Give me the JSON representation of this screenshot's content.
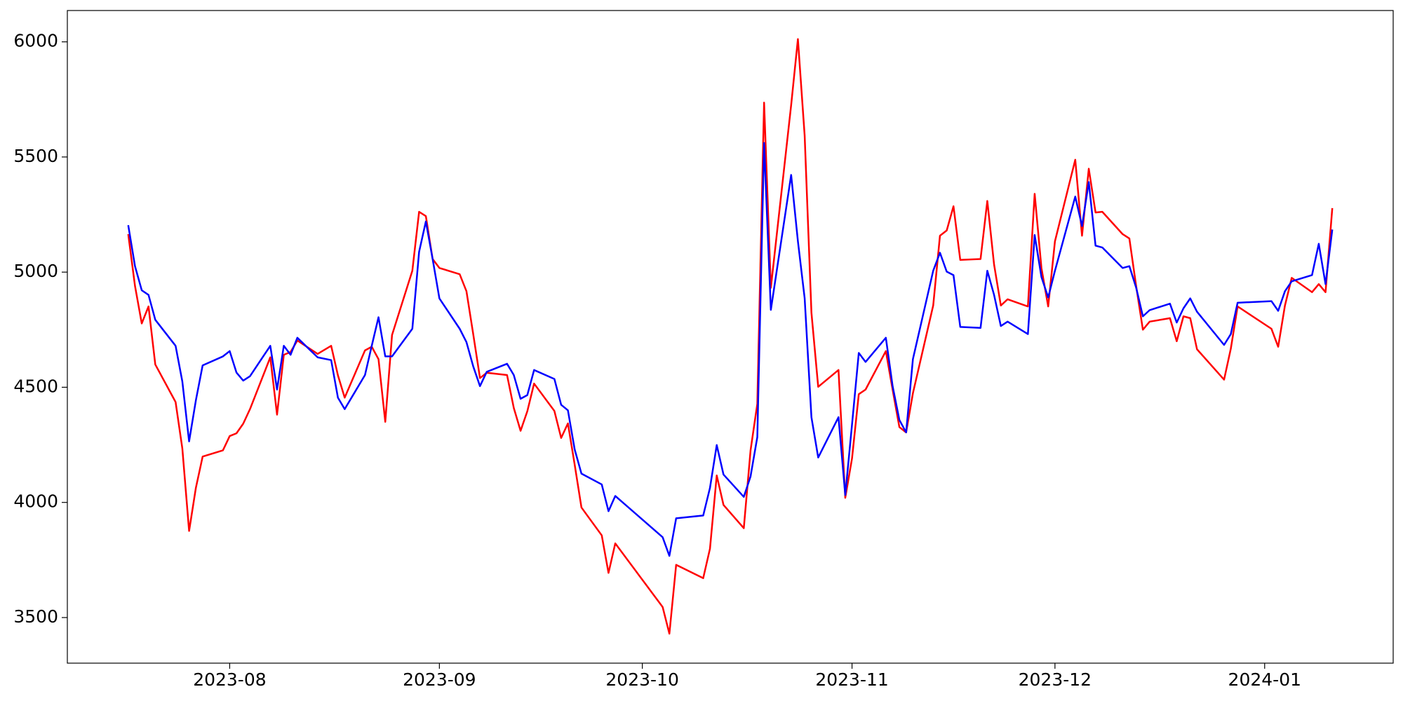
{
  "chart_data": {
    "type": "line",
    "x": [
      "2023-07-17",
      "2023-07-18",
      "2023-07-19",
      "2023-07-20",
      "2023-07-21",
      "2023-07-24",
      "2023-07-25",
      "2023-07-26",
      "2023-07-27",
      "2023-07-28",
      "2023-07-31",
      "2023-08-01",
      "2023-08-02",
      "2023-08-03",
      "2023-08-04",
      "2023-08-07",
      "2023-08-08",
      "2023-08-09",
      "2023-08-10",
      "2023-08-11",
      "2023-08-14",
      "2023-08-16",
      "2023-08-17",
      "2023-08-18",
      "2023-08-21",
      "2023-08-22",
      "2023-08-23",
      "2023-08-24",
      "2023-08-25",
      "2023-08-28",
      "2023-08-29",
      "2023-08-30",
      "2023-08-31",
      "2023-09-01",
      "2023-09-04",
      "2023-09-05",
      "2023-09-06",
      "2023-09-07",
      "2023-09-08",
      "2023-09-11",
      "2023-09-12",
      "2023-09-13",
      "2023-09-14",
      "2023-09-15",
      "2023-09-18",
      "2023-09-19",
      "2023-09-20",
      "2023-09-21",
      "2023-09-22",
      "2023-09-25",
      "2023-09-26",
      "2023-09-27",
      "2023-10-04",
      "2023-10-05",
      "2023-10-06",
      "2023-10-10",
      "2023-10-11",
      "2023-10-12",
      "2023-10-13",
      "2023-10-16",
      "2023-10-17",
      "2023-10-18",
      "2023-10-19",
      "2023-10-20",
      "2023-10-23",
      "2023-10-24",
      "2023-10-25",
      "2023-10-26",
      "2023-10-27",
      "2023-10-30",
      "2023-10-31",
      "2023-11-01",
      "2023-11-02",
      "2023-11-03",
      "2023-11-06",
      "2023-11-07",
      "2023-11-08",
      "2023-11-09",
      "2023-11-10",
      "2023-11-13",
      "2023-11-14",
      "2023-11-15",
      "2023-11-16",
      "2023-11-17",
      "2023-11-20",
      "2023-11-21",
      "2023-11-22",
      "2023-11-23",
      "2023-11-24",
      "2023-11-27",
      "2023-11-28",
      "2023-11-29",
      "2023-11-30",
      "2023-12-01",
      "2023-12-04",
      "2023-12-05",
      "2023-12-06",
      "2023-12-07",
      "2023-12-08",
      "2023-12-11",
      "2023-12-12",
      "2023-12-13",
      "2023-12-14",
      "2023-12-15",
      "2023-12-18",
      "2023-12-19",
      "2023-12-20",
      "2023-12-21",
      "2023-12-22",
      "2023-12-26",
      "2023-12-27",
      "2023-12-28",
      "2024-01-02",
      "2024-01-03",
      "2024-01-04",
      "2024-01-05",
      "2024-01-08",
      "2024-01-09",
      "2024-01-10",
      "2024-01-11"
    ],
    "series": [
      {
        "color": "#ff0000",
        "values": [
          5165,
          4940,
          4777,
          4851,
          4599,
          4436,
          4234,
          3876,
          4063,
          4199,
          4226,
          4288,
          4300,
          4342,
          4405,
          4630,
          4381,
          4641,
          4653,
          4703,
          4645,
          4680,
          4552,
          4455,
          4660,
          4676,
          4622,
          4350,
          4727,
          5006,
          5262,
          5243,
          5057,
          5018,
          4991,
          4917,
          4731,
          4540,
          4563,
          4553,
          4410,
          4311,
          4396,
          4516,
          4397,
          4280,
          4343,
          4164,
          3978,
          3857,
          3694,
          3822,
          3546,
          3430,
          3729,
          3671,
          3799,
          4117,
          3989,
          3888,
          4226,
          4428,
          5736,
          4932,
          5725,
          6012,
          5592,
          4824,
          4502,
          4575,
          4020,
          4191,
          4470,
          4490,
          4657,
          4490,
          4327,
          4304,
          4474,
          4855,
          5158,
          5181,
          5286,
          5053,
          5057,
          5309,
          5033,
          4855,
          4882,
          4851,
          5340,
          5018,
          4851,
          5134,
          5488,
          5158,
          5449,
          5259,
          5262,
          5165,
          5146,
          4940,
          4750,
          4785,
          4800,
          4700,
          4808,
          4800,
          4665,
          4533,
          4668,
          4851,
          4754,
          4676,
          4855,
          4975,
          4913,
          4948,
          4913,
          5278
        ]
      },
      {
        "color": "#0000ff",
        "values": [
          5204,
          5026,
          4921,
          4901,
          4793,
          4680,
          4525,
          4265,
          4443,
          4595,
          4634,
          4657,
          4564,
          4529,
          4548,
          4680,
          4490,
          4680,
          4641,
          4715,
          4630,
          4618,
          4455,
          4405,
          4553,
          4680,
          4804,
          4634,
          4634,
          4754,
          5088,
          5220,
          5057,
          4886,
          4754,
          4696,
          4591,
          4505,
          4567,
          4602,
          4553,
          4450,
          4466,
          4575,
          4536,
          4424,
          4400,
          4230,
          4125,
          4078,
          3962,
          4028,
          3849,
          3768,
          3931,
          3943,
          4063,
          4249,
          4121,
          4024,
          4113,
          4284,
          5561,
          4836,
          5422,
          5134,
          4886,
          4370,
          4195,
          4370,
          4032,
          4338,
          4649,
          4610,
          4715,
          4505,
          4358,
          4304,
          4622,
          5006,
          5084,
          5002,
          4987,
          4762,
          4758,
          5006,
          4901,
          4766,
          4785,
          4731,
          5161,
          4979,
          4890,
          5006,
          5328,
          5200,
          5391,
          5115,
          5107,
          5018,
          5026,
          4933,
          4808,
          4835,
          4863,
          4781,
          4843,
          4886,
          4828,
          4684,
          4731,
          4867,
          4874,
          4832,
          4917,
          4960,
          4987,
          5123,
          4948,
          5185
        ]
      }
    ],
    "xlim": [
      "2023-07-08",
      "2024-01-20"
    ],
    "xticks": [
      {
        "value": "2023-08-01",
        "label": "2023-08"
      },
      {
        "value": "2023-09-01",
        "label": "2023-09"
      },
      {
        "value": "2023-10-01",
        "label": "2023-10"
      },
      {
        "value": "2023-11-01",
        "label": "2023-11"
      },
      {
        "value": "2023-12-01",
        "label": "2023-12"
      },
      {
        "value": "2024-01-01",
        "label": "2024-01"
      }
    ],
    "ylim": [
      3302,
      6136
    ],
    "yticks": [
      3500,
      4000,
      4500,
      5000,
      5500,
      6000
    ],
    "grid": false
  }
}
